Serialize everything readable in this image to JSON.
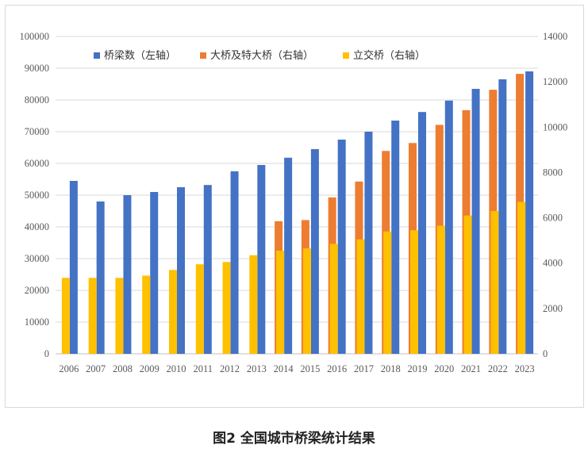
{
  "caption": "图2 全国城市桥梁统计结果",
  "chart_data": {
    "type": "bar",
    "title": "",
    "xlabel": "",
    "ylabel": "",
    "categories": [
      "2006",
      "2007",
      "2008",
      "2009",
      "2010",
      "2011",
      "2012",
      "2013",
      "2014",
      "2015",
      "2016",
      "2017",
      "2018",
      "2019",
      "2020",
      "2021",
      "2022",
      "2023"
    ],
    "y_left": {
      "lim": [
        0,
        100000
      ],
      "ticks": [
        0,
        10000,
        20000,
        30000,
        40000,
        50000,
        60000,
        70000,
        80000,
        90000,
        100000
      ]
    },
    "y_right": {
      "lim": [
        0,
        14000
      ],
      "ticks": [
        0,
        2000,
        4000,
        6000,
        8000,
        10000,
        12000,
        14000
      ]
    },
    "grid": true,
    "legend_position": "top",
    "series": [
      {
        "name": "桥梁数（左轴）",
        "axis": "left",
        "color": "#4472C4",
        "values": [
          54500,
          48000,
          50000,
          51000,
          52500,
          53200,
          57500,
          59500,
          61800,
          64500,
          67500,
          70000,
          73500,
          76200,
          79800,
          83500,
          86500,
          89000
        ]
      },
      {
        "name": "大桥及特大桥（右轴）",
        "axis": "right",
        "color": "#ED7D31",
        "values": [
          null,
          null,
          null,
          null,
          null,
          null,
          null,
          null,
          5850,
          5900,
          6900,
          7600,
          8950,
          9300,
          10100,
          10750,
          11650,
          12350
        ]
      },
      {
        "name": "立交桥（右轴）",
        "axis": "right",
        "color": "#FFC000",
        "values": [
          3350,
          3350,
          3350,
          3450,
          3700,
          3950,
          4050,
          4350,
          4550,
          4650,
          4850,
          5050,
          5400,
          5450,
          5650,
          6100,
          6300,
          6700
        ]
      }
    ]
  }
}
